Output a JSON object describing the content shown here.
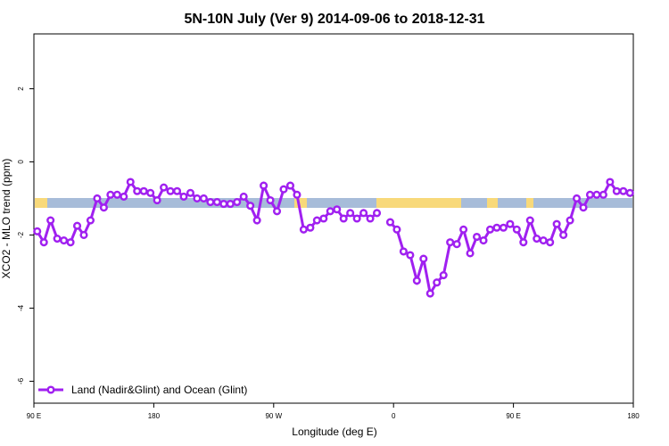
{
  "chart_data": {
    "type": "line",
    "title": "5N-10N July (Ver 9)   2014-09-06 to 2018-12-31",
    "x_label": "Longitude (deg E)",
    "y_label": "XCO2 - MLO trend (ppm)",
    "xlim": [
      90,
      540
    ],
    "ylim": [
      -6.6,
      3.5
    ],
    "xticks": [
      {
        "value": 90,
        "label": "90 E"
      },
      180,
      {
        "value": 270,
        "label": "90 W"
      },
      {
        "value": 360,
        "label": "0"
      },
      {
        "value": 450,
        "label": "90 E"
      },
      {
        "value": 540,
        "label": "180"
      }
    ],
    "yticks": [
      2,
      0,
      -2,
      -4,
      -6
    ],
    "legend": "bottom-left",
    "x": [
      92.5,
      97.5,
      102.5,
      107.5,
      112.5,
      117.5,
      122.5,
      127.5,
      132.5,
      137.5,
      142.5,
      147.5,
      152.5,
      157.5,
      162.5,
      167.5,
      172.5,
      177.5,
      182.5,
      187.5,
      192.5,
      197.5,
      202.5,
      207.5,
      212.5,
      217.5,
      222.5,
      227.5,
      232.5,
      237.5,
      242.5,
      247.5,
      252.5,
      257.5,
      262.5,
      267.5,
      272.5,
      277.5,
      282.5,
      287.5,
      292.5,
      297.5,
      302.5,
      307.5,
      312.5,
      317.5,
      322.5,
      327.5,
      332.5,
      337.5,
      342.5,
      347.5,
      352.5,
      357.5,
      362.5,
      367.5,
      372.5,
      377.5,
      382.5,
      387.5,
      392.5,
      397.5,
      402.5,
      407.5,
      412.5,
      417.5,
      422.5,
      427.5,
      432.5,
      437.5,
      442.5,
      447.5,
      452.5,
      457.5,
      462.5,
      467.5,
      472.5,
      477.5,
      482.5,
      487.5,
      492.5,
      497.5,
      502.5,
      507.5,
      512.5,
      517.5,
      522.5,
      527.5,
      532.5,
      537.5
    ],
    "series": [
      {
        "name": "Land (Nadir&Glint) and Ocean (Glint)",
        "color": "#a020f0",
        "values": [
          -1.9,
          -2.2,
          -1.6,
          -2.1,
          -2.15,
          -2.2,
          -1.75,
          -2.0,
          -1.6,
          -1.0,
          -1.25,
          -0.9,
          -0.9,
          -0.95,
          -0.55,
          -0.8,
          -0.8,
          -0.85,
          -1.05,
          -0.7,
          -0.8,
          -0.8,
          -0.95,
          -0.85,
          -1.0,
          -1.0,
          -1.1,
          -1.1,
          -1.15,
          -1.15,
          -1.1,
          -0.95,
          -1.2,
          -1.6,
          -0.65,
          -1.05,
          -1.35,
          -0.75,
          -0.65,
          -0.9,
          -1.85,
          -1.8,
          -1.6,
          -1.55,
          -1.35,
          -1.3,
          -1.55,
          -1.4,
          -1.55,
          -1.4,
          -1.55,
          -1.4,
          null,
          -1.65,
          -1.85,
          -2.45,
          -2.55,
          -3.25,
          -2.65,
          -3.6,
          -3.3,
          -3.1,
          -2.2,
          -2.25,
          -1.85,
          -2.5,
          -2.05,
          -2.15,
          -1.85,
          -1.8,
          -1.8,
          -1.7,
          -1.85,
          -2.2,
          -1.6,
          -2.1,
          -2.15,
          -2.2,
          -1.7,
          -2.0,
          -1.6,
          -1.0,
          -1.25,
          -0.9,
          -0.9,
          -0.9,
          -0.55,
          -0.8,
          -0.8,
          -0.85
        ]
      }
    ]
  }
}
